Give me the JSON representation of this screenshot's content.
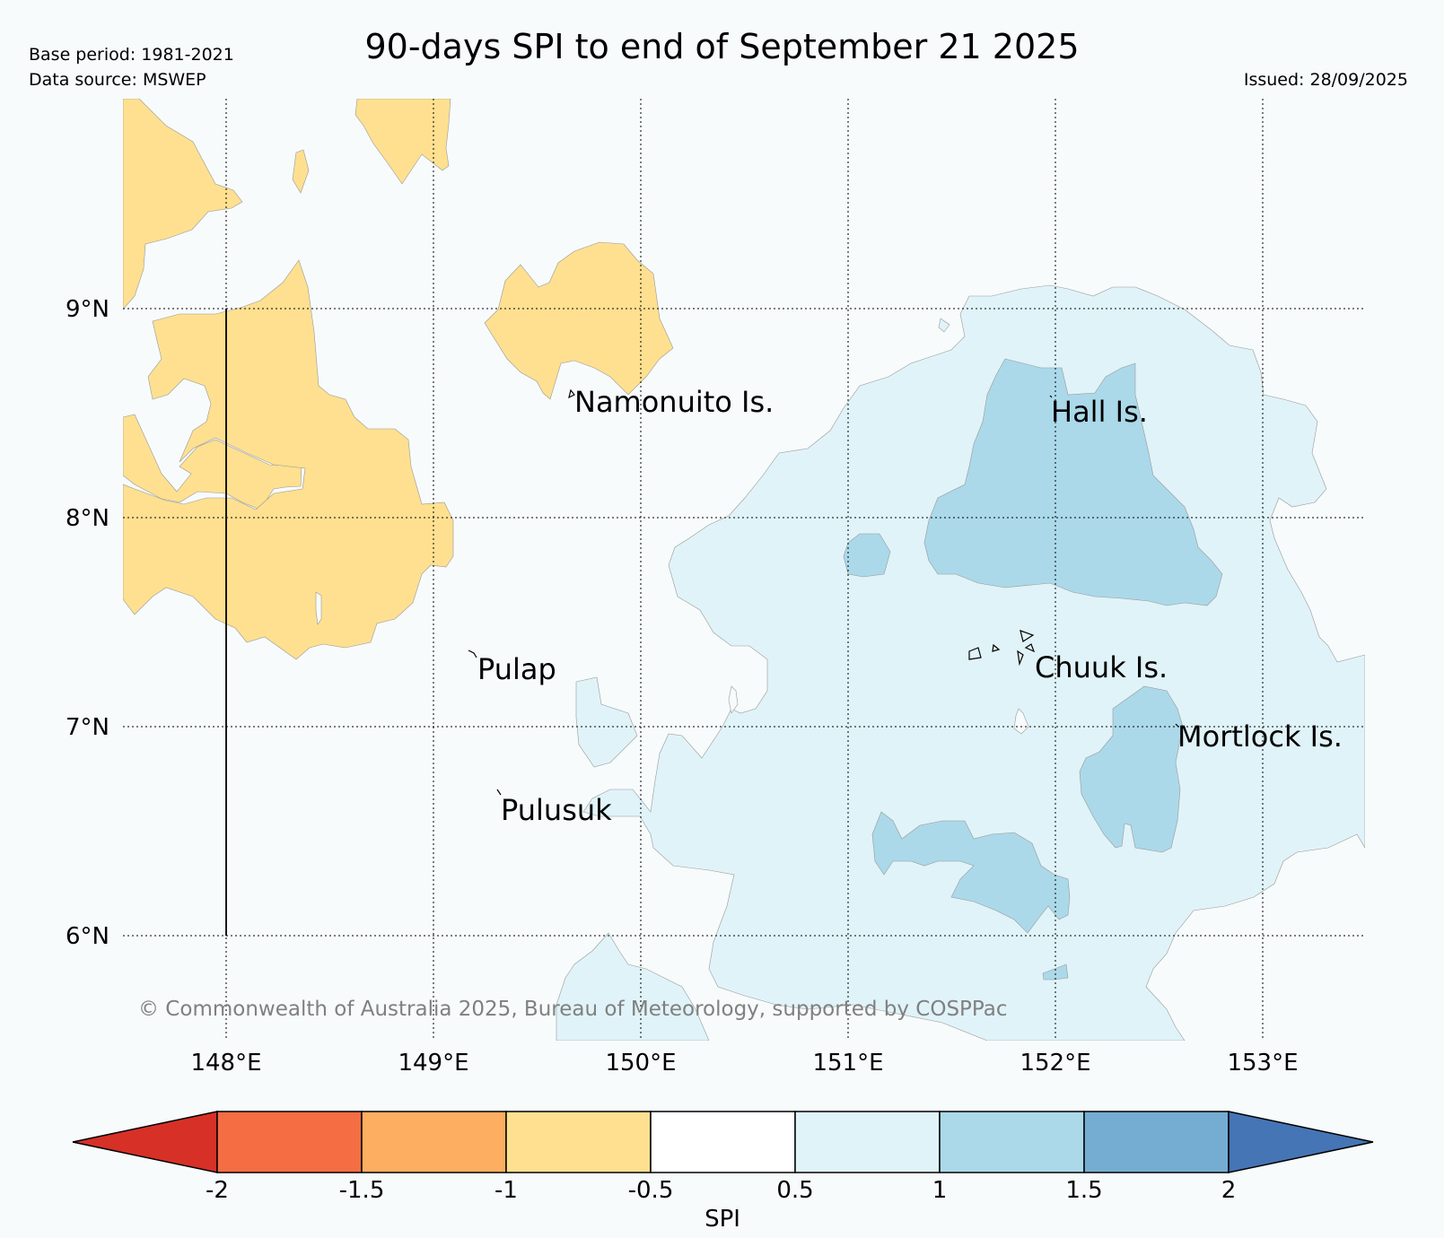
{
  "header": {
    "title": "90-days SPI to end of September 21 2025",
    "base_period": "Base period: 1981-2021",
    "data_source": "Data source: MSWEP",
    "issued": "Issued: 28/09/2025"
  },
  "map": {
    "lat_labels": [
      "9°N",
      "8°N",
      "7°N",
      "6°N"
    ],
    "lon_labels": [
      "148°E",
      "149°E",
      "150°E",
      "151°E",
      "152°E",
      "153°E"
    ],
    "places": [
      {
        "name": "Namonuito Is."
      },
      {
        "name": "Hall Is."
      },
      {
        "name": "Pulap"
      },
      {
        "name": "Chuuk Is."
      },
      {
        "name": "Mortlock Is."
      },
      {
        "name": "Pulusuk"
      }
    ],
    "copyright": "© Commonwealth of Australia 2025, Bureau of Meteorology, supported by COSPPac"
  },
  "colorbar": {
    "label": "SPI",
    "ticks": [
      "-2",
      "-1.5",
      "-1",
      "-0.5",
      "0.5",
      "1",
      "1.5",
      "2"
    ],
    "colors": {
      "lt_minus2": "#d73027",
      "minus2_minus15": "#f46d43",
      "minus15_minus1": "#fdae61",
      "minus1_minus05": "#fee090",
      "neutral": "#ffffff",
      "p05_p1": "#e0f3f8",
      "p1_p15": "#abd9e9",
      "p15_p2": "#74add1",
      "gt_2": "#4575b4"
    }
  }
}
